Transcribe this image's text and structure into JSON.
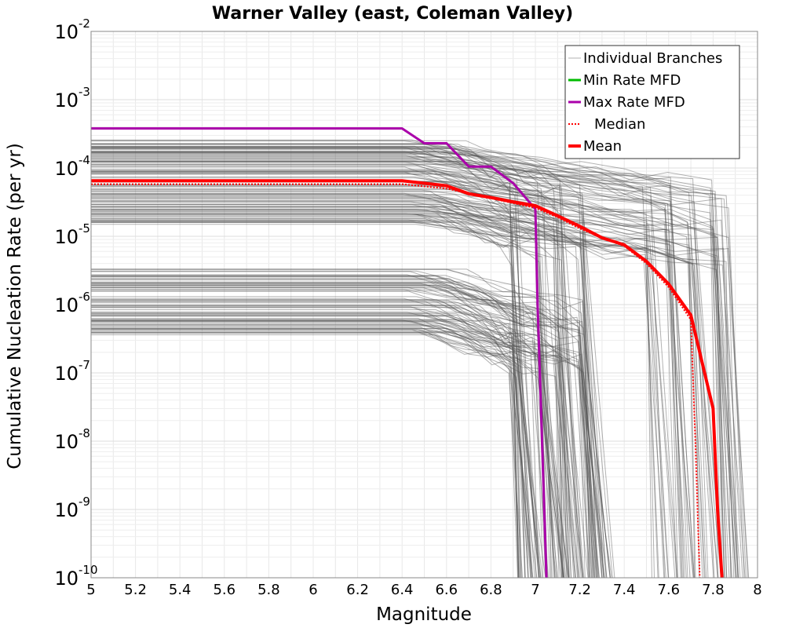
{
  "chart_data": {
    "type": "line",
    "title": "Warner Valley (east, Coleman Valley)",
    "xlabel": "Magnitude",
    "ylabel": "Cumulative Nucleation Rate (per yr)",
    "xlim": [
      5,
      8
    ],
    "ylim": [
      1e-10,
      0.01
    ],
    "yscale": "log",
    "grid": true,
    "legend_position": "top-right",
    "x_ticks": [
      "5",
      "5.2",
      "5.4",
      "5.6",
      "5.8",
      "6",
      "6.2",
      "6.4",
      "6.6",
      "6.8",
      "7",
      "7.2",
      "7.4",
      "7.6",
      "7.8",
      "8"
    ],
    "y_ticks": [
      {
        "base": "10",
        "exp": "-10",
        "value": 1e-10
      },
      {
        "base": "10",
        "exp": "-9",
        "value": 1e-09
      },
      {
        "base": "10",
        "exp": "-8",
        "value": 1e-08
      },
      {
        "base": "10",
        "exp": "-7",
        "value": 1e-07
      },
      {
        "base": "10",
        "exp": "-6",
        "value": 1e-06
      },
      {
        "base": "10",
        "exp": "-5",
        "value": 1e-05
      },
      {
        "base": "10",
        "exp": "-4",
        "value": 0.0001
      },
      {
        "base": "10",
        "exp": "-3",
        "value": 0.001
      },
      {
        "base": "10",
        "exp": "-2",
        "value": 0.01
      }
    ],
    "legend": [
      {
        "label": "Individual Branches",
        "color": "#b0b0b0",
        "style": "thin"
      },
      {
        "label": "Min Rate MFD",
        "color": "#00bb00",
        "style": "solid"
      },
      {
        "label": "Max Rate MFD",
        "color": "#aa00aa",
        "style": "solid"
      },
      {
        "label": "Median",
        "color": "#ff0000",
        "style": "dotted"
      },
      {
        "label": "Mean",
        "color": "#ff0000",
        "style": "thick"
      }
    ],
    "series": [
      {
        "name": "Max Rate MFD",
        "color": "#aa00aa",
        "x": [
          5.0,
          6.4,
          6.5,
          6.6,
          6.7,
          6.8,
          6.9,
          7.0,
          7.01,
          7.02,
          7.03,
          7.04,
          7.05
        ],
        "y": [
          0.00038,
          0.00038,
          0.00023,
          0.00023,
          0.000105,
          0.000105,
          6e-05,
          2.5e-05,
          1e-06,
          1e-07,
          1e-08,
          1e-09,
          1e-10
        ]
      },
      {
        "name": "Median",
        "color": "#ff0000",
        "x": [
          5.0,
          6.4,
          6.6,
          6.8,
          7.0,
          7.1,
          7.2,
          7.3,
          7.4,
          7.5,
          7.6,
          7.7,
          7.72,
          7.74
        ],
        "y": [
          5.8e-05,
          5.8e-05,
          5e-05,
          3.6e-05,
          2.6e-05,
          1.9e-05,
          1.3e-05,
          9.5e-06,
          7.2e-06,
          4e-06,
          1.8e-06,
          6e-07,
          1e-08,
          1e-10
        ]
      },
      {
        "name": "Mean",
        "color": "#ff0000",
        "x": [
          5.0,
          6.4,
          6.6,
          6.7,
          6.8,
          6.9,
          7.0,
          7.1,
          7.2,
          7.3,
          7.4,
          7.5,
          7.6,
          7.7,
          7.8,
          7.82,
          7.84
        ],
        "y": [
          6.5e-05,
          6.5e-05,
          5.5e-05,
          4.2e-05,
          3.7e-05,
          3.2e-05,
          2.8e-05,
          2e-05,
          1.4e-05,
          9.5e-06,
          7.5e-06,
          4.3e-06,
          2e-06,
          7e-07,
          3e-08,
          1e-09,
          1e-10
        ]
      }
    ],
    "branch_bands": [
      {
        "y_min": 1.5e-05,
        "y_max": 0.00026,
        "count": 120,
        "cutoffs": [
          6.9,
          7.02,
          7.1,
          7.2,
          7.5,
          7.6,
          7.7,
          7.8,
          7.85
        ]
      },
      {
        "y_min": 3.6e-07,
        "y_max": 3.6e-06,
        "count": 80,
        "cutoffs": [
          6.9,
          7.0,
          7.1,
          7.2
        ]
      }
    ]
  }
}
